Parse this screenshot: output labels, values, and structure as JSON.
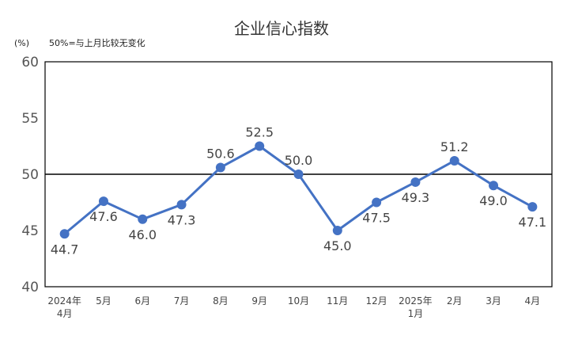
{
  "chart_data": {
    "type": "line",
    "title": "企业信心指数",
    "unit_label": "(%)",
    "note": "50%=与上月比较无变化",
    "x": [
      [
        "2024年",
        "4月"
      ],
      [
        "5月"
      ],
      [
        "6月"
      ],
      [
        "7月"
      ],
      [
        "8月"
      ],
      [
        "9月"
      ],
      [
        "10月"
      ],
      [
        "11月"
      ],
      [
        "12月"
      ],
      [
        "2025年",
        "1月"
      ],
      [
        "2月"
      ],
      [
        "3月"
      ],
      [
        "4月"
      ]
    ],
    "series": [
      {
        "values": [
          44.7,
          47.6,
          46.0,
          47.3,
          50.6,
          52.5,
          50.0,
          45.0,
          47.5,
          49.3,
          51.2,
          49.0,
          47.1
        ],
        "labels": [
          "44.7",
          "47.6",
          "46.0",
          "47.3",
          "50.6",
          "52.5",
          "50.0",
          "45.0",
          "47.5",
          "49.3",
          "51.2",
          "49.0",
          "47.1"
        ],
        "label_position": [
          "below",
          "below",
          "below",
          "below",
          "above",
          "above",
          "above",
          "below",
          "below",
          "below",
          "above",
          "below",
          "below"
        ],
        "color": "#4472c4"
      }
    ],
    "ylim": [
      40,
      60
    ],
    "yticks": [
      40,
      45,
      50,
      55,
      60
    ],
    "reference_line": 50,
    "grid": false,
    "legend": "none"
  }
}
